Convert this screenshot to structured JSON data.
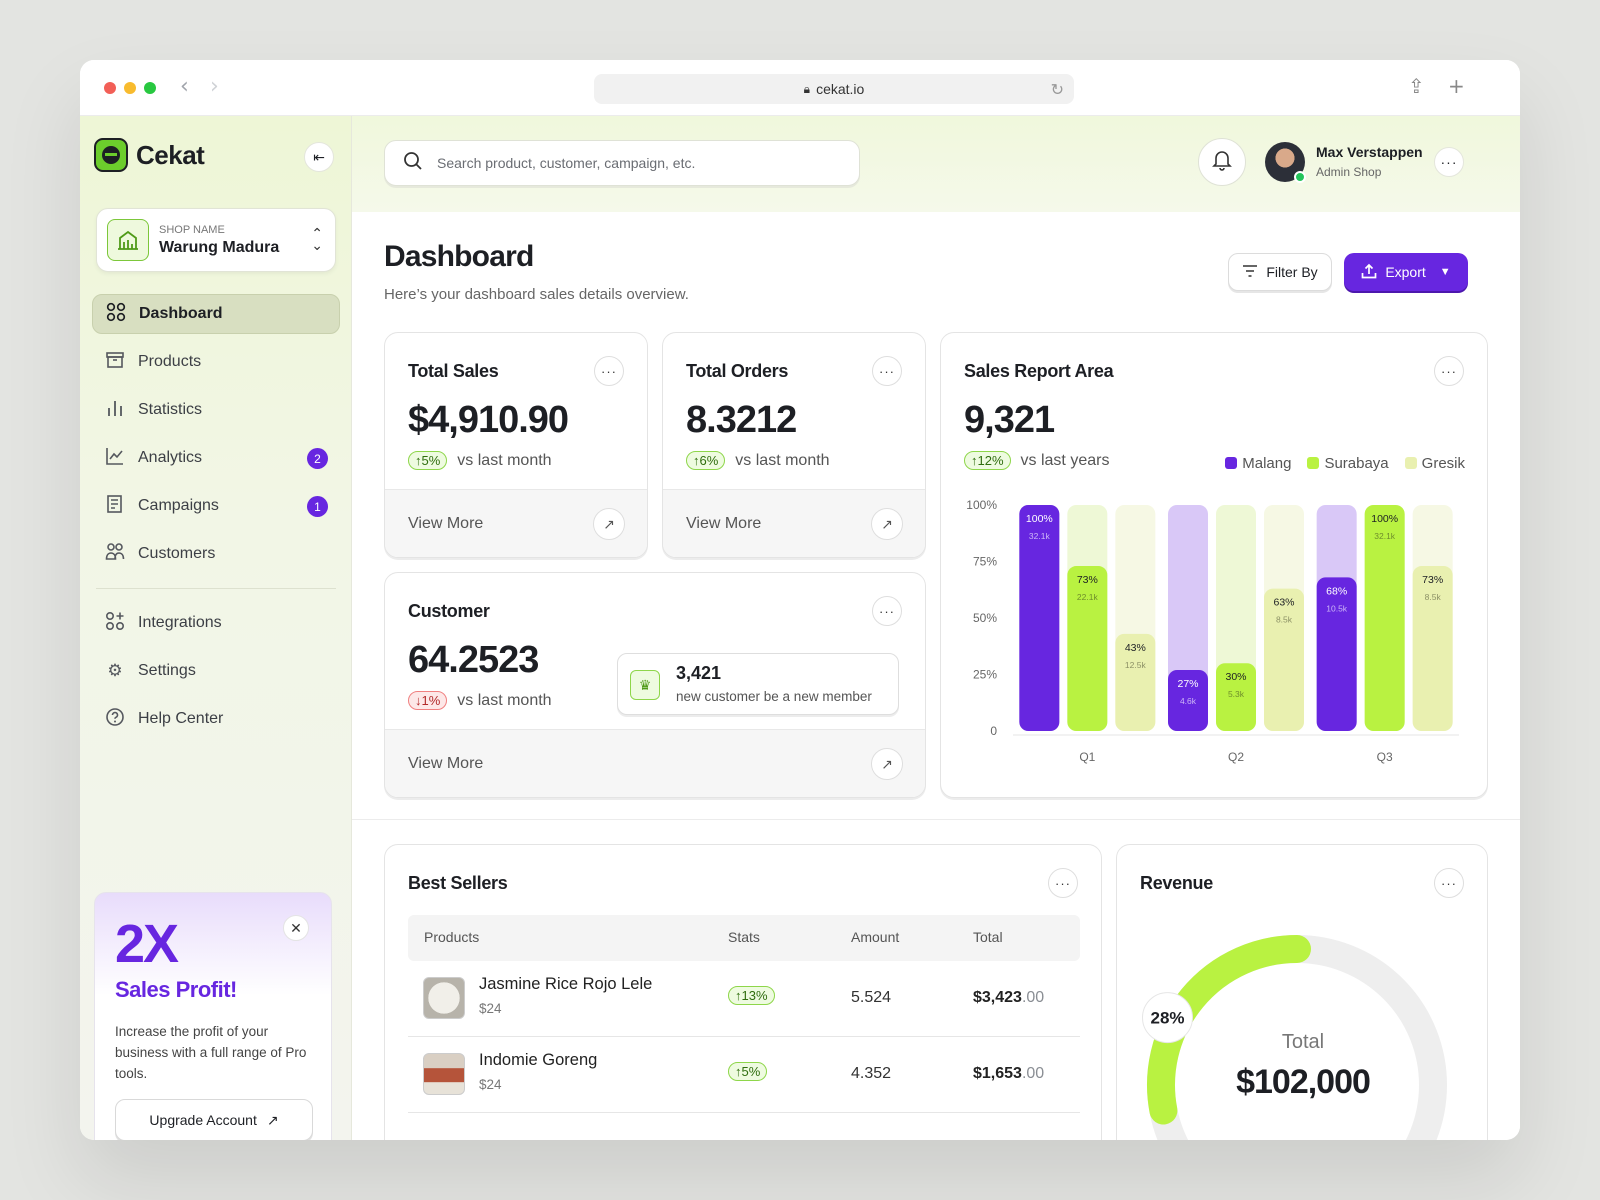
{
  "browser": {
    "url": "cekat.io"
  },
  "brand": {
    "name": "Cekat",
    "accent": "#6726e0",
    "lime": "#b9f241"
  },
  "shop": {
    "caption": "SHOP NAME",
    "name": "Warung Madura"
  },
  "nav": {
    "items": [
      {
        "label": "Dashboard",
        "icon": "grid-icon",
        "active": true
      },
      {
        "label": "Products",
        "icon": "archive-box-icon"
      },
      {
        "label": "Statistics",
        "icon": "bars-icon"
      },
      {
        "label": "Analytics",
        "icon": "line-chart-icon",
        "badge": "2"
      },
      {
        "label": "Campaigns",
        "icon": "document-icon",
        "badge": "1"
      },
      {
        "label": "Customers",
        "icon": "users-icon"
      }
    ],
    "secondary": [
      {
        "label": "Integrations",
        "icon": "integrations-icon"
      },
      {
        "label": "Settings",
        "icon": "gear-icon"
      },
      {
        "label": "Help Center",
        "icon": "help-icon"
      }
    ]
  },
  "promo": {
    "headline": "2X",
    "title": "Sales Profit!",
    "description": "Increase the profit of your business with a full range of Pro tools.",
    "button": "Upgrade Account"
  },
  "search": {
    "placeholder": "Search product, customer, campaign, etc."
  },
  "user": {
    "name": "Max Verstappen",
    "role": "Admin Shop"
  },
  "header": {
    "title": "Dashboard",
    "subtitle": "Here’s your dashboard sales details overview.",
    "filter_label": "Filter By",
    "export_label": "Export"
  },
  "cards": {
    "total_sales": {
      "title": "Total Sales",
      "value": "$4,910.90",
      "delta": "5%",
      "delta_dir": "up",
      "compare": "vs last month",
      "footer": "View More"
    },
    "total_orders": {
      "title": "Total Orders",
      "value": "8.3212",
      "delta": "6%",
      "delta_dir": "up",
      "compare": "vs last month",
      "footer": "View More"
    },
    "customer": {
      "title": "Customer",
      "value": "64.2523",
      "delta": "1%",
      "delta_dir": "down",
      "compare": "vs last month",
      "footer": "View More",
      "new_count": "3,421",
      "new_text": "new customer be a new member"
    }
  },
  "sales_report": {
    "title": "Sales Report Area",
    "value": "9,321",
    "delta": "12%",
    "compare": "vs last years"
  },
  "chart_data": {
    "type": "bar",
    "categories": [
      "Q1",
      "Q2",
      "Q3"
    ],
    "series": [
      {
        "name": "Malang",
        "color": "#6726e0",
        "values": [
          100,
          27,
          68
        ],
        "sublabels": [
          "32.1k",
          "4.6k",
          "10.5k"
        ]
      },
      {
        "name": "Surabaya",
        "color": "#b9f241",
        "values": [
          73,
          30,
          100
        ],
        "sublabels": [
          "22.1k",
          "5.3k",
          "32.1k"
        ]
      },
      {
        "name": "Gresik",
        "color": "#e9f0b0",
        "values": [
          43,
          63,
          73
        ],
        "sublabels": [
          "12.5k",
          "8.5k",
          "8.5k"
        ]
      }
    ],
    "ylim": [
      0,
      100
    ],
    "yticks": [
      "0",
      "25%",
      "50%",
      "75%",
      "100%"
    ],
    "legend": "top-right"
  },
  "best_sellers": {
    "title": "Best Sellers",
    "columns": [
      "Products",
      "Stats",
      "Amount",
      "Total"
    ],
    "rows": [
      {
        "name": "Jasmine Rice Rojo Lele",
        "price": "$24",
        "stat": "13%",
        "amount": "5.524",
        "total_main": "$3,423",
        "total_cents": ".00"
      },
      {
        "name": "Indomie Goreng",
        "price": "$24",
        "stat": "5%",
        "amount": "4.352",
        "total_main": "$1,653",
        "total_cents": ".00"
      }
    ]
  },
  "revenue": {
    "title": "Revenue",
    "percent": "28%",
    "percent_value": 28,
    "total_label": "Total",
    "total": "$102,000"
  }
}
